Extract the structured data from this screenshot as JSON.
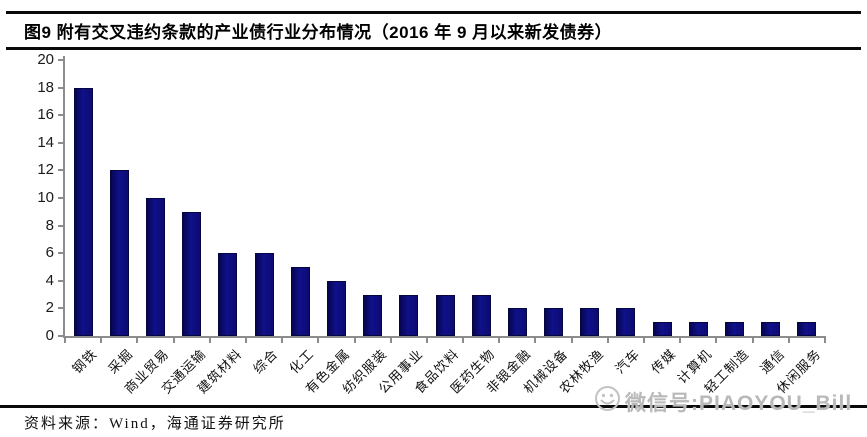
{
  "page": {
    "title": "图9  附有交叉违约条款的产业债行业分布情况（2016 年 9 月以来新发债券）",
    "source": "资料来源：Wind，海通证券研究所",
    "watermark": {
      "icon": "smiley-face-icon",
      "text": "微信号:PIAOYOU_Bill"
    }
  },
  "chart_data": {
    "type": "bar",
    "title": "附有交叉违约条款的产业债行业分布情况（2016 年 9 月以来新发债券）",
    "categories": [
      "钢铁",
      "采掘",
      "商业贸易",
      "交通运输",
      "建筑材料",
      "综合",
      "化工",
      "有色金属",
      "纺织服装",
      "公用事业",
      "食品饮料",
      "医药生物",
      "非银金融",
      "机械设备",
      "农林牧渔",
      "汽车",
      "传媒",
      "计算机",
      "轻工制造",
      "通信",
      "休闲服务"
    ],
    "values": [
      18,
      12,
      10,
      9,
      6,
      6,
      5,
      4,
      3,
      3,
      3,
      3,
      2,
      2,
      2,
      2,
      1,
      1,
      1,
      1,
      1
    ],
    "xlabel": "",
    "ylabel": "",
    "ylim": [
      0,
      20
    ],
    "ytick_step": 2,
    "yticks": [
      0,
      2,
      4,
      6,
      8,
      10,
      12,
      14,
      16,
      18,
      20
    ],
    "grid": false,
    "legend": null,
    "bar_color": "#10108A",
    "axis_color": "#8C8C8C"
  }
}
